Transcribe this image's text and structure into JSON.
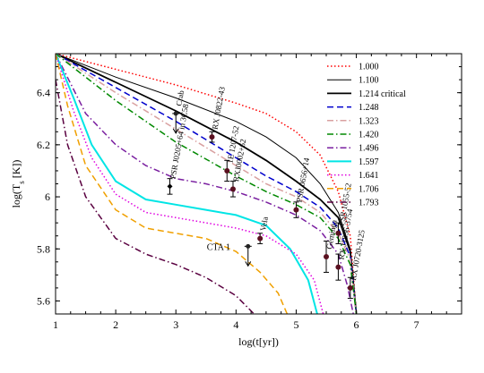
{
  "chart_data": {
    "type": "line",
    "title": "",
    "xlabel": "log(t[yr])",
    "ylabel": "log(T_s [K])",
    "xlim": [
      1,
      7.75
    ],
    "ylim": [
      5.55,
      6.55
    ],
    "xticks": [
      1,
      2,
      3,
      4,
      5,
      6,
      7
    ],
    "yticks": [
      5.6,
      5.8,
      6,
      6.2,
      6.4
    ],
    "xtick_labels": [
      "1",
      "2",
      "3",
      "4",
      "5",
      "6",
      "7"
    ],
    "ytick_labels": [
      "5.6",
      "5.8",
      "6",
      "6.2",
      "6.4"
    ],
    "grid": false,
    "legend_position": "top-right",
    "series": [
      {
        "name": "1.000",
        "color": "#ff0000",
        "dash": "dotted",
        "points": [
          [
            1,
            6.55
          ],
          [
            2,
            6.49
          ],
          [
            3,
            6.43
          ],
          [
            4,
            6.36
          ],
          [
            4.5,
            6.32
          ],
          [
            5,
            6.25
          ],
          [
            5.4,
            6.16
          ],
          [
            5.7,
            6.02
          ],
          [
            5.9,
            5.85
          ],
          [
            6.0,
            5.55
          ]
        ]
      },
      {
        "name": "1.100",
        "color": "#000000",
        "dash": "solid-thin",
        "points": [
          [
            1,
            6.55
          ],
          [
            2,
            6.46
          ],
          [
            3,
            6.38
          ],
          [
            4,
            6.29
          ],
          [
            4.5,
            6.23
          ],
          [
            5,
            6.15
          ],
          [
            5.4,
            6.05
          ],
          [
            5.7,
            5.94
          ],
          [
            5.9,
            5.8
          ],
          [
            6.0,
            5.55
          ]
        ]
      },
      {
        "name": "1.214 critical",
        "color": "#000000",
        "dash": "solid-thick",
        "points": [
          [
            1,
            6.55
          ],
          [
            2,
            6.44
          ],
          [
            3,
            6.33
          ],
          [
            4,
            6.21
          ],
          [
            4.5,
            6.14
          ],
          [
            5,
            6.06
          ],
          [
            5.4,
            5.99
          ],
          [
            5.7,
            5.92
          ],
          [
            5.9,
            5.79
          ],
          [
            6.0,
            5.55
          ]
        ]
      },
      {
        "name": "1.248",
        "color": "#0000cc",
        "dash": "dashed",
        "points": [
          [
            1,
            6.55
          ],
          [
            2,
            6.42
          ],
          [
            3,
            6.29
          ],
          [
            4,
            6.15
          ],
          [
            4.5,
            6.08
          ],
          [
            5,
            6.02
          ],
          [
            5.4,
            5.96
          ],
          [
            5.7,
            5.88
          ],
          [
            5.9,
            5.77
          ],
          [
            6.0,
            5.55
          ]
        ]
      },
      {
        "name": "1.323",
        "color": "#d9a0a0",
        "dash": "dashdot",
        "points": [
          [
            1,
            6.55
          ],
          [
            2,
            6.4
          ],
          [
            3,
            6.26
          ],
          [
            4,
            6.12
          ],
          [
            4.5,
            6.05
          ],
          [
            5,
            6.0
          ],
          [
            5.4,
            5.94
          ],
          [
            5.7,
            5.86
          ],
          [
            5.9,
            5.76
          ],
          [
            6.0,
            5.55
          ]
        ]
      },
      {
        "name": "1.420",
        "color": "#008800",
        "dash": "dashdot",
        "points": [
          [
            1,
            6.55
          ],
          [
            2,
            6.37
          ],
          [
            3,
            6.21
          ],
          [
            4,
            6.08
          ],
          [
            4.5,
            6.02
          ],
          [
            5,
            5.97
          ],
          [
            5.4,
            5.92
          ],
          [
            5.7,
            5.84
          ],
          [
            5.9,
            5.74
          ],
          [
            6.0,
            5.55
          ]
        ]
      },
      {
        "name": "1.496",
        "color": "#7a1fa0",
        "dash": "dashdot",
        "points": [
          [
            1,
            6.55
          ],
          [
            1.5,
            6.32
          ],
          [
            2,
            6.2
          ],
          [
            2.5,
            6.12
          ],
          [
            3,
            6.07
          ],
          [
            3.5,
            6.05
          ],
          [
            4,
            6.02
          ],
          [
            4.5,
            5.98
          ],
          [
            5,
            5.93
          ],
          [
            5.4,
            5.87
          ],
          [
            5.7,
            5.78
          ],
          [
            5.85,
            5.66
          ],
          [
            5.95,
            5.55
          ]
        ]
      },
      {
        "name": "1.597",
        "color": "#00e5e5",
        "dash": "solid",
        "points": [
          [
            1,
            6.55
          ],
          [
            1.3,
            6.38
          ],
          [
            1.6,
            6.2
          ],
          [
            2,
            6.06
          ],
          [
            2.5,
            5.99
          ],
          [
            3,
            5.97
          ],
          [
            3.5,
            5.95
          ],
          [
            4,
            5.93
          ],
          [
            4.5,
            5.89
          ],
          [
            4.9,
            5.8
          ],
          [
            5.2,
            5.68
          ],
          [
            5.35,
            5.55
          ]
        ]
      },
      {
        "name": "1.641",
        "color": "#e000e0",
        "dash": "dotted",
        "points": [
          [
            1,
            6.55
          ],
          [
            1.3,
            6.33
          ],
          [
            1.6,
            6.15
          ],
          [
            2,
            6.01
          ],
          [
            2.5,
            5.94
          ],
          [
            3,
            5.92
          ],
          [
            3.5,
            5.9
          ],
          [
            4,
            5.88
          ],
          [
            4.5,
            5.85
          ],
          [
            5,
            5.78
          ],
          [
            5.3,
            5.68
          ],
          [
            5.45,
            5.55
          ]
        ]
      },
      {
        "name": "1.706",
        "color": "#f0a000",
        "dash": "dashed",
        "points": [
          [
            1,
            6.55
          ],
          [
            1.2,
            6.35
          ],
          [
            1.5,
            6.12
          ],
          [
            2,
            5.95
          ],
          [
            2.5,
            5.88
          ],
          [
            3,
            5.86
          ],
          [
            3.5,
            5.84
          ],
          [
            4,
            5.79
          ],
          [
            4.4,
            5.71
          ],
          [
            4.7,
            5.63
          ],
          [
            4.85,
            5.55
          ]
        ]
      },
      {
        "name": "1.793",
        "color": "#5a0040",
        "dash": "dashdot",
        "points": [
          [
            1,
            6.45
          ],
          [
            1.2,
            6.2
          ],
          [
            1.5,
            6.0
          ],
          [
            2,
            5.84
          ],
          [
            2.5,
            5.78
          ],
          [
            3,
            5.74
          ],
          [
            3.5,
            5.69
          ],
          [
            4,
            5.62
          ],
          [
            4.3,
            5.55
          ]
        ]
      }
    ],
    "observations": [
      {
        "label": "Crab",
        "x": 3.0,
        "y": 6.32,
        "yerr": 0.04,
        "kind": "upper-limit"
      },
      {
        "label": "RX J0822-43",
        "x": 3.6,
        "y": 6.23,
        "yerr": 0.02,
        "kind": "point"
      },
      {
        "label": "1E 1207-52",
        "x": 3.85,
        "y": 6.1,
        "yerr": 0.04,
        "kind": "point"
      },
      {
        "label": "RXJ0002+62",
        "x": 3.95,
        "y": 6.03,
        "yerr": 0.03,
        "kind": "point"
      },
      {
        "label": "PSR J0205+64 in 3C58",
        "x": 2.9,
        "y": 6.04,
        "yerr": 0.03,
        "kind": "point-open"
      },
      {
        "label": "PSR 0656+14",
        "x": 5.0,
        "y": 5.95,
        "yerr": 0.03,
        "kind": "point"
      },
      {
        "label": "Vela",
        "x": 4.4,
        "y": 5.84,
        "yerr": 0.02,
        "kind": "point"
      },
      {
        "label": "CTA 1",
        "x": 4.2,
        "y": 5.81,
        "yerr": 0.02,
        "kind": "upper-limit"
      },
      {
        "label": "Geminga",
        "x": 5.5,
        "y": 5.77,
        "yerr": 0.06,
        "kind": "point"
      },
      {
        "label": "PSR 1055-52",
        "x": 5.7,
        "y": 5.86,
        "yerr": 0.04,
        "kind": "point"
      },
      {
        "label": "RX J1856-3754",
        "x": 5.7,
        "y": 5.73,
        "yerr": 0.05,
        "kind": "point"
      },
      {
        "label": "RX J0720-3125",
        "x": 5.9,
        "y": 5.65,
        "yerr": 0.04,
        "kind": "point"
      }
    ]
  }
}
